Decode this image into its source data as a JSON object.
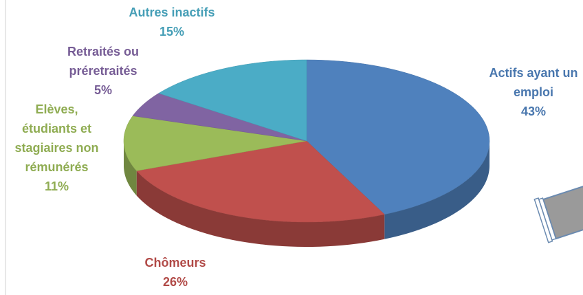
{
  "chart_data": {
    "type": "pie",
    "categories": [
      "Actifs ayant un emploi",
      "Chômeurs",
      "Elèves, étudiants et stagiaires non rémunérés",
      "Retraités ou préretraités",
      "Autres inactifs"
    ],
    "values": [
      43,
      26,
      11,
      5,
      15
    ],
    "value_labels": [
      "43%",
      "26%",
      "11%",
      "5%",
      "15%"
    ],
    "colors": [
      "#4f81bd",
      "#c0504d",
      "#9bbb59",
      "#8064a2",
      "#4bacc6"
    ]
  }
}
